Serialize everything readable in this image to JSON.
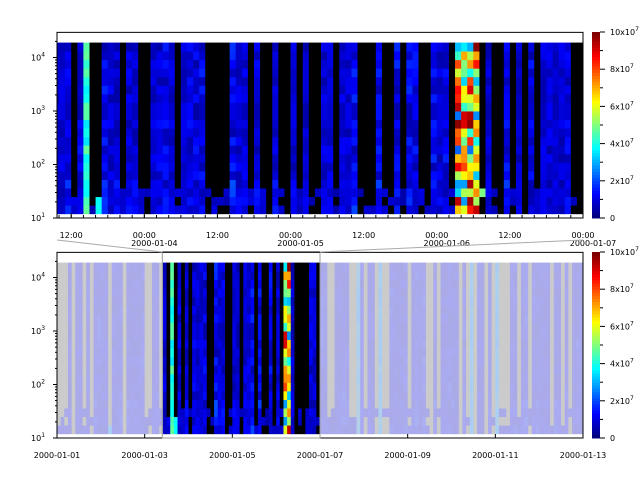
{
  "chart_data": [
    {
      "panel": "top",
      "type": "heatmap",
      "xaxis": {
        "type": "time",
        "range": [
          "2000-01-03 09:40",
          "2000-01-07 00:00"
        ],
        "ticks": [
          {
            "t": "2000-01-03 12:00",
            "label": "12:00",
            "sub": ""
          },
          {
            "t": "2000-01-04 00:00",
            "label": "00:00",
            "sub": "2000-01-04"
          },
          {
            "t": "2000-01-04 12:00",
            "label": "12:00",
            "sub": ""
          },
          {
            "t": "2000-01-05 00:00",
            "label": "00:00",
            "sub": "2000-01-05"
          },
          {
            "t": "2000-01-05 12:00",
            "label": "12:00",
            "sub": ""
          },
          {
            "t": "2000-01-06 00:00",
            "label": "00:00",
            "sub": "2000-01-06"
          },
          {
            "t": "2000-01-06 12:00",
            "label": "12:00",
            "sub": ""
          },
          {
            "t": "2000-01-07 00:00",
            "label": "00:00",
            "sub": "2000-01-07"
          }
        ]
      },
      "yaxis": {
        "scale": "log",
        "range": [
          10,
          29500
        ],
        "data_range": [
          12,
          19000
        ],
        "ticks": [
          "10^1",
          "10^2",
          "10^3",
          "10^4"
        ]
      },
      "colorbar": {
        "colormap": "jet",
        "range": [
          0,
          100000000
        ],
        "ticks": [
          "0",
          "2x10^7",
          "4x10^7",
          "6x10^7",
          "8x10^7",
          "10x10^7"
        ]
      },
      "background": "#000000",
      "peak": {
        "t": "2000-01-06 04:00",
        "value": 100000000
      }
    },
    {
      "panel": "bottom",
      "type": "heatmap",
      "xaxis": {
        "type": "time",
        "range": [
          "2000-01-01",
          "2000-01-13"
        ],
        "ticks": [
          "2000-01-01",
          "2000-01-03",
          "2000-01-05",
          "2000-01-07",
          "2000-01-09",
          "2000-01-11",
          "2000-01-13"
        ]
      },
      "yaxis": {
        "scale": "log",
        "range": [
          10,
          29500
        ],
        "ticks": [
          "10^1",
          "10^2",
          "10^3",
          "10^4"
        ]
      },
      "highlight": {
        "range": [
          "2000-01-03 09:40",
          "2000-01-07 00:00"
        ]
      },
      "colorbar": {
        "colormap": "jet",
        "range": [
          0,
          100000000
        ],
        "ticks": [
          "0",
          "2x10^7",
          "4x10^7",
          "6x10^7",
          "8x10^7",
          "10x10^7"
        ]
      },
      "faded_color": "#c8c8f0",
      "missing_color": "#cbcbcb"
    }
  ]
}
